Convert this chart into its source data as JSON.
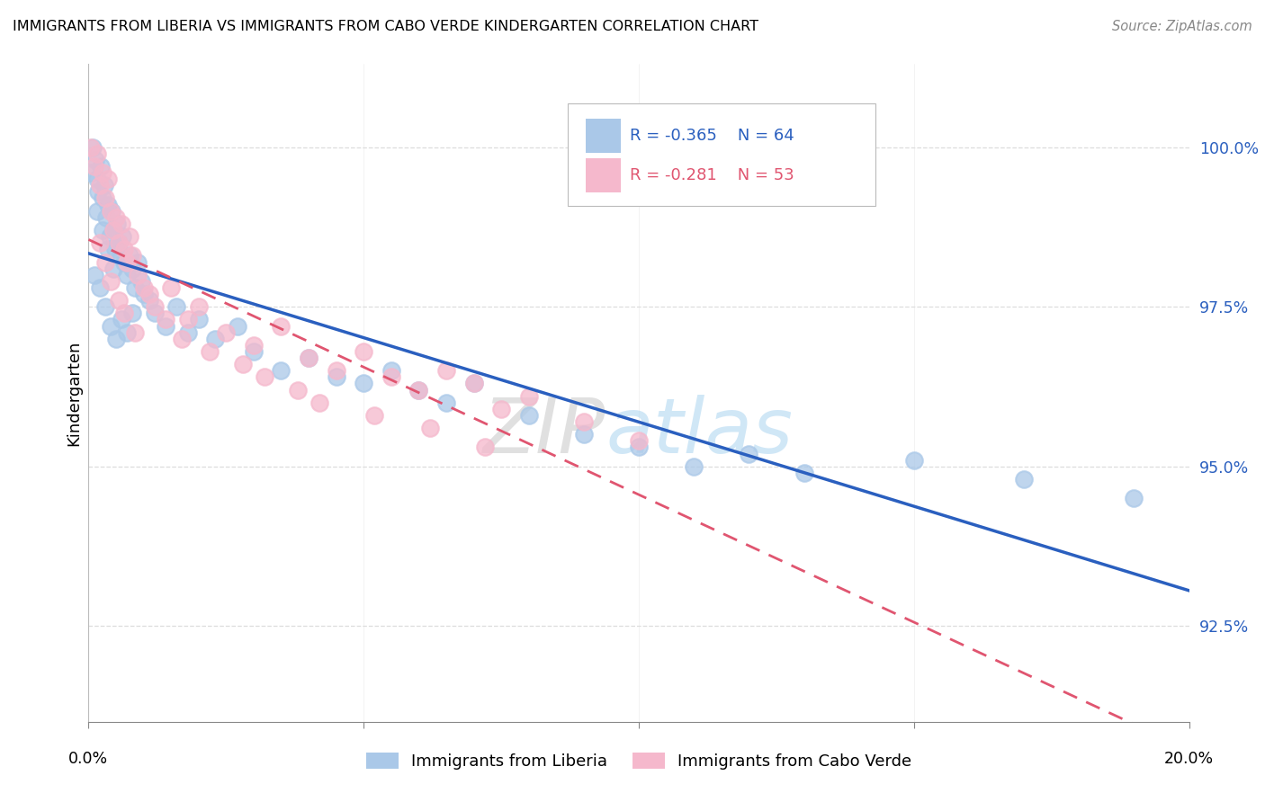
{
  "title": "IMMIGRANTS FROM LIBERIA VS IMMIGRANTS FROM CABO VERDE KINDERGARTEN CORRELATION CHART",
  "source": "Source: ZipAtlas.com",
  "ylabel": "Kindergarten",
  "y_ticks": [
    92.5,
    95.0,
    97.5,
    100.0
  ],
  "y_tick_labels": [
    "92.5%",
    "95.0%",
    "97.5%",
    "100.0%"
  ],
  "xlim": [
    0.0,
    20.0
  ],
  "ylim": [
    91.0,
    101.3
  ],
  "blue_color": "#aac8e8",
  "pink_color": "#f5b8cc",
  "blue_line_color": "#2a5fbf",
  "pink_line_color": "#e05570",
  "liberia_label": "Immigrants from Liberia",
  "caboverde_label": "Immigrants from Cabo Verde",
  "liberia_x": [
    0.05,
    0.08,
    0.12,
    0.15,
    0.18,
    0.22,
    0.25,
    0.28,
    0.32,
    0.35,
    0.38,
    0.42,
    0.45,
    0.48,
    0.52,
    0.55,
    0.58,
    0.62,
    0.65,
    0.7,
    0.75,
    0.8,
    0.85,
    0.9,
    0.95,
    1.0,
    1.1,
    1.2,
    1.4,
    1.6,
    1.8,
    2.0,
    2.3,
    2.7,
    3.0,
    3.5,
    4.0,
    4.5,
    5.0,
    5.5,
    6.0,
    6.5,
    7.0,
    8.0,
    9.0,
    10.0,
    11.0,
    12.0,
    13.0,
    15.0,
    17.0,
    19.0,
    0.1,
    0.2,
    0.3,
    0.4,
    0.5,
    0.6,
    0.7,
    0.8,
    0.15,
    0.25,
    0.35,
    0.45
  ],
  "liberia_y": [
    99.6,
    100.0,
    99.8,
    99.5,
    99.3,
    99.7,
    99.2,
    99.4,
    98.9,
    99.1,
    98.6,
    99.0,
    98.7,
    98.4,
    98.8,
    98.5,
    98.3,
    98.6,
    98.2,
    98.0,
    98.3,
    98.1,
    97.8,
    98.2,
    97.9,
    97.7,
    97.6,
    97.4,
    97.2,
    97.5,
    97.1,
    97.3,
    97.0,
    97.2,
    96.8,
    96.5,
    96.7,
    96.4,
    96.3,
    96.5,
    96.2,
    96.0,
    96.3,
    95.8,
    95.5,
    95.3,
    95.0,
    95.2,
    94.9,
    95.1,
    94.8,
    94.5,
    98.0,
    97.8,
    97.5,
    97.2,
    97.0,
    97.3,
    97.1,
    97.4,
    99.0,
    98.7,
    98.4,
    98.1
  ],
  "caboverde_x": [
    0.05,
    0.1,
    0.15,
    0.2,
    0.25,
    0.3,
    0.35,
    0.4,
    0.45,
    0.5,
    0.55,
    0.6,
    0.65,
    0.7,
    0.75,
    0.8,
    0.9,
    1.0,
    1.2,
    1.5,
    1.8,
    2.0,
    2.5,
    3.0,
    3.5,
    4.0,
    4.5,
    5.0,
    5.5,
    6.0,
    6.5,
    7.0,
    7.5,
    8.0,
    9.0,
    10.0,
    0.2,
    0.3,
    0.4,
    0.55,
    0.65,
    0.85,
    1.1,
    1.4,
    1.7,
    2.2,
    2.8,
    3.2,
    3.8,
    4.2,
    5.2,
    6.2,
    7.2
  ],
  "caboverde_y": [
    100.0,
    99.7,
    99.9,
    99.4,
    99.6,
    99.2,
    99.5,
    99.0,
    98.7,
    98.9,
    98.5,
    98.8,
    98.4,
    98.2,
    98.6,
    98.3,
    98.0,
    97.8,
    97.5,
    97.8,
    97.3,
    97.5,
    97.1,
    96.9,
    97.2,
    96.7,
    96.5,
    96.8,
    96.4,
    96.2,
    96.5,
    96.3,
    95.9,
    96.1,
    95.7,
    95.4,
    98.5,
    98.2,
    97.9,
    97.6,
    97.4,
    97.1,
    97.7,
    97.3,
    97.0,
    96.8,
    96.6,
    96.4,
    96.2,
    96.0,
    95.8,
    95.6,
    95.3
  ]
}
